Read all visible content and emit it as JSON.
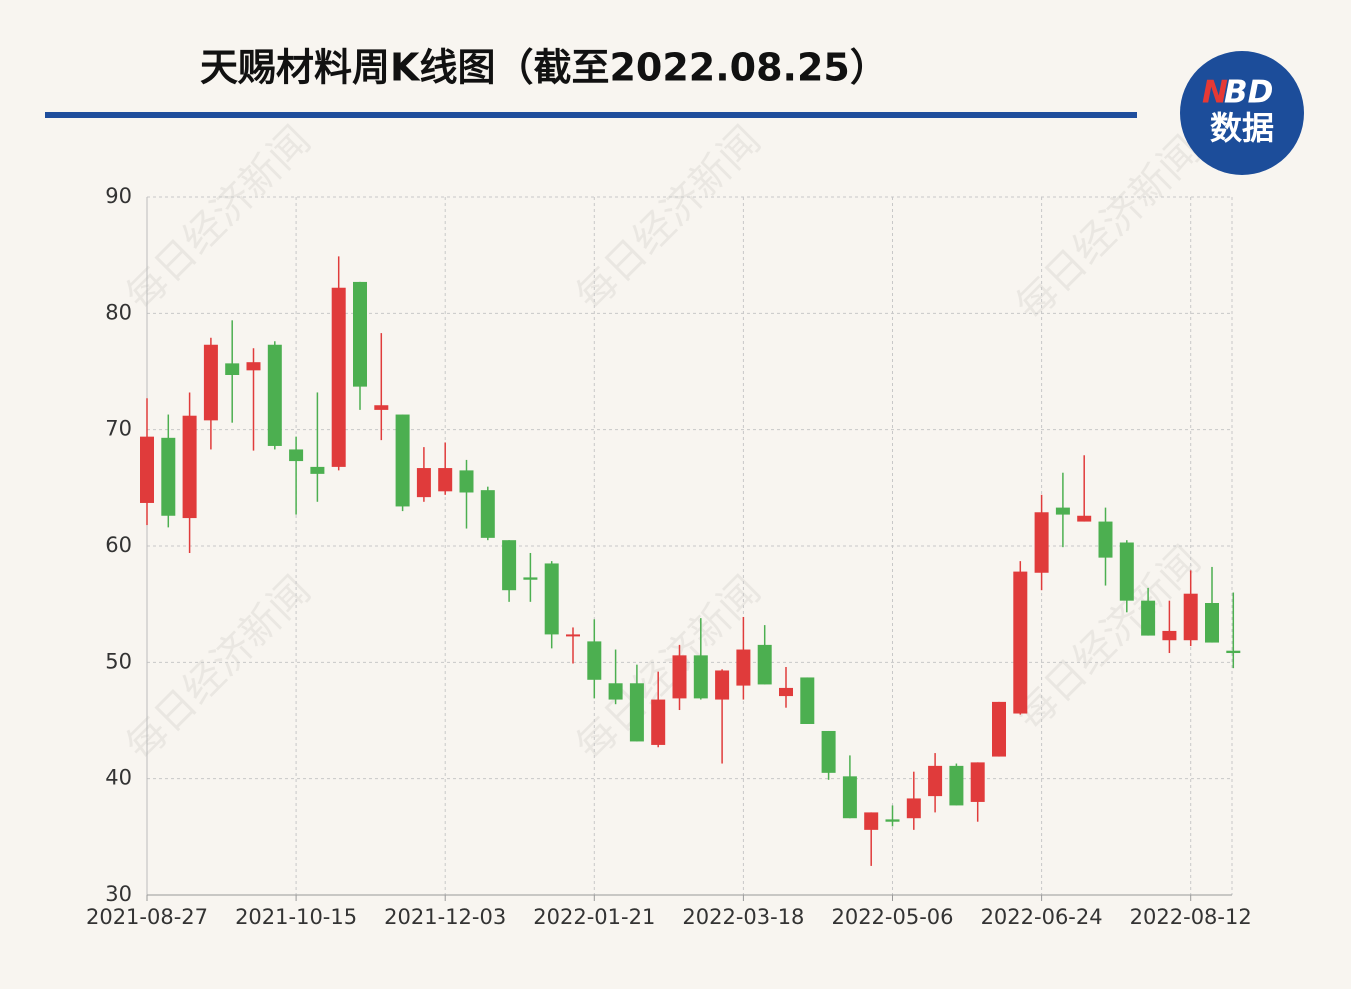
{
  "chart_data": {
    "type": "candlestick",
    "title": "天赐材料周K线图（截至2022.08.25）",
    "categories": [
      "2021-08-27",
      null,
      null,
      null,
      null,
      null,
      null,
      "2021-10-15",
      null,
      null,
      null,
      null,
      null,
      null,
      "2021-12-03",
      null,
      null,
      null,
      null,
      null,
      null,
      "2022-01-21",
      null,
      null,
      null,
      null,
      null,
      null,
      "2022-03-18",
      null,
      null,
      null,
      null,
      null,
      null,
      "2022-05-06",
      null,
      null,
      null,
      null,
      null,
      null,
      "2022-06-24",
      null,
      null,
      null,
      null,
      null,
      null,
      "2022-08-12",
      null,
      null
    ],
    "open": [
      63.7,
      69.3,
      62.4,
      70.8,
      75.7,
      75.1,
      77.3,
      68.3,
      66.8,
      66.8,
      82.7,
      71.7,
      71.3,
      64.2,
      64.7,
      66.5,
      64.8,
      60.5,
      57.3,
      58.5,
      52.3,
      51.8,
      48.2,
      48.2,
      42.9,
      46.9,
      50.6,
      46.8,
      48.0,
      51.5,
      47.1,
      48.7,
      44.1,
      40.2,
      35.6,
      36.5,
      36.6,
      38.5,
      41.1,
      38.0,
      41.9,
      45.6,
      57.7,
      63.3,
      62.1,
      62.1,
      60.3,
      55.3,
      51.9,
      51.9,
      55.1,
      51.0
    ],
    "high": [
      72.7,
      71.3,
      73.2,
      77.9,
      79.4,
      77.0,
      77.6,
      69.4,
      73.2,
      84.9,
      82.7,
      78.3,
      71.3,
      68.5,
      68.9,
      67.4,
      65.1,
      60.5,
      59.4,
      58.7,
      53.0,
      53.7,
      51.1,
      49.8,
      49.2,
      51.5,
      53.8,
      49.4,
      53.9,
      53.2,
      49.6,
      48.7,
      44.1,
      42.0,
      37.1,
      37.7,
      40.6,
      42.2,
      41.3,
      41.4,
      46.6,
      58.7,
      64.4,
      66.3,
      67.8,
      63.3,
      60.5,
      56.4,
      55.3,
      57.9,
      58.2,
      56.0
    ],
    "low": [
      61.8,
      61.6,
      59.4,
      68.3,
      70.6,
      68.2,
      68.3,
      62.7,
      63.8,
      66.5,
      71.7,
      69.1,
      63.0,
      63.8,
      64.4,
      61.5,
      60.5,
      55.2,
      55.2,
      51.2,
      49.9,
      46.9,
      46.4,
      43.2,
      42.7,
      45.9,
      46.8,
      41.3,
      46.8,
      48.1,
      46.1,
      44.7,
      39.9,
      36.6,
      32.5,
      35.9,
      35.6,
      37.1,
      37.7,
      36.3,
      41.9,
      45.5,
      56.2,
      59.9,
      62.1,
      56.6,
      54.3,
      52.3,
      50.8,
      51.4,
      51.7,
      49.5
    ],
    "close": [
      69.4,
      62.6,
      71.2,
      77.3,
      74.7,
      75.8,
      68.6,
      67.3,
      66.2,
      82.2,
      73.7,
      72.1,
      63.4,
      66.7,
      66.7,
      64.6,
      60.7,
      56.2,
      57.1,
      52.4,
      52.4,
      48.5,
      46.8,
      43.2,
      46.8,
      50.6,
      46.9,
      49.3,
      51.1,
      48.1,
      47.8,
      44.7,
      40.5,
      36.6,
      37.1,
      36.3,
      38.3,
      41.1,
      37.7,
      41.4,
      46.6,
      57.8,
      62.9,
      62.7,
      62.6,
      59.0,
      55.3,
      52.3,
      52.7,
      55.9,
      51.7,
      50.8
    ],
    "up_color": "#e03b3b",
    "down_color": "#4caf50",
    "ylim": [
      30,
      90
    ],
    "yticks": [
      30,
      40,
      50,
      60,
      70,
      80,
      90
    ],
    "grid": true
  },
  "logo": [
    "N",
    "BD",
    "数据"
  ],
  "watermark": "每日经济新闻"
}
